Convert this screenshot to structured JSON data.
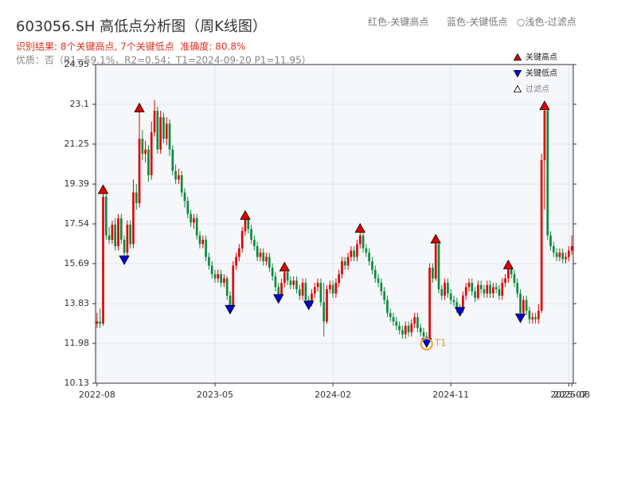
{
  "chart_data": {
    "type": "candlestick",
    "title": "603056.SH 高低点分析图（周K线图）",
    "subtitle": "识别结果: 8个关键高点, 7个关键低点  准确度: 80.8%",
    "note": "优质：否（R1=59.1%，R2=0.54；T1=2024-09-20 P1=11.95）",
    "header_legend": [
      "红色-关键高点",
      "蓝色-关键低点",
      "○浅色-过滤点"
    ],
    "up_color": "#e00000",
    "down_color": "#0a8a3a",
    "ylim": [
      10.13,
      24.95
    ],
    "yticks": [
      10.13,
      11.98,
      13.83,
      15.69,
      17.54,
      19.39,
      21.25,
      23.1,
      24.95
    ],
    "grid": true,
    "legend": "upper right",
    "categories": [
      "2022-08",
      null,
      null,
      null,
      null,
      null,
      null,
      null,
      null,
      null,
      null,
      null,
      null,
      null,
      null,
      null,
      null,
      null,
      null,
      null,
      null,
      null,
      null,
      null,
      null,
      null,
      null,
      null,
      null,
      null,
      null,
      null,
      null,
      null,
      null,
      null,
      null,
      null,
      null,
      "2023-05",
      null,
      null,
      null,
      null,
      null,
      null,
      null,
      null,
      null,
      null,
      null,
      null,
      null,
      null,
      null,
      null,
      null,
      null,
      null,
      null,
      null,
      null,
      null,
      null,
      null,
      null,
      null,
      null,
      null,
      null,
      null,
      null,
      null,
      null,
      null,
      null,
      null,
      null,
      "2024-02",
      null,
      null,
      null,
      null,
      null,
      null,
      null,
      null,
      null,
      null,
      null,
      null,
      null,
      null,
      null,
      null,
      null,
      null,
      null,
      null,
      null,
      null,
      null,
      null,
      null,
      null,
      null,
      null,
      null,
      null,
      null,
      null,
      null,
      null,
      null,
      null,
      null,
      null,
      "2024-11",
      null,
      null,
      null,
      null,
      null,
      null,
      null,
      null,
      null,
      null,
      null,
      null,
      null,
      null,
      null,
      null,
      null,
      null,
      null,
      null,
      null,
      null,
      null,
      null,
      null,
      null,
      null,
      null,
      null,
      null,
      null,
      null,
      null,
      null,
      null,
      null,
      null,
      null,
      "2025-07",
      "2025-08"
    ],
    "open": [
      12.9,
      13.0,
      12.9,
      18.8,
      17.0,
      16.8,
      17.5,
      16.5,
      17.8,
      16.8,
      16.2,
      17.5,
      16.6,
      19.0,
      18.5,
      21.5,
      20.8,
      21.0,
      19.8,
      21.8,
      22.8,
      21.0,
      22.5,
      21.5,
      22.2,
      21.0,
      20.0,
      19.6,
      19.8,
      19.0,
      18.6,
      18.0,
      17.6,
      17.8,
      17.0,
      16.6,
      16.8,
      16.0,
      15.6,
      15.2,
      15.0,
      15.2,
      14.8,
      15.0,
      14.2,
      13.7,
      15.6,
      16.0,
      16.4,
      17.2,
      17.8,
      17.3,
      16.8,
      16.5,
      16.0,
      16.2,
      15.8,
      16.0,
      15.5,
      15.1,
      14.6,
      14.2,
      14.8,
      15.3,
      14.9,
      14.7,
      14.9,
      14.5,
      14.2,
      14.8,
      14.0,
      13.8,
      14.3,
      14.6,
      14.8,
      13.9,
      13.0,
      14.5,
      14.7,
      14.3,
      14.8,
      15.2,
      15.8,
      15.6,
      16.0,
      16.3,
      16.0,
      16.6,
      17.0,
      16.4,
      16.2,
      15.8,
      15.4,
      15.0,
      14.8,
      14.4,
      14.0,
      13.4,
      13.2,
      13.0,
      12.8,
      12.6,
      12.4,
      12.8,
      12.5,
      12.9,
      13.2,
      12.7,
      12.5,
      12.3,
      12.2,
      15.5,
      15.0,
      16.6,
      14.5,
      14.2,
      14.8,
      14.3,
      14.0,
      13.9,
      13.6,
      13.5,
      14.2,
      14.6,
      14.8,
      14.4,
      14.1,
      14.7,
      14.5,
      14.3,
      14.7,
      14.3,
      14.6,
      14.5,
      14.2,
      14.8,
      15.0,
      15.5,
      15.2,
      14.8,
      14.3,
      13.4,
      14.0,
      13.5,
      13.1,
      13.2,
      13.1,
      13.5,
      20.5,
      22.8,
      17.0,
      16.5,
      16.2,
      16.0,
      16.2,
      15.9,
      16.0,
      16.3
    ],
    "close": [
      13.0,
      12.9,
      18.8,
      17.0,
      16.8,
      17.5,
      16.5,
      17.8,
      16.8,
      16.2,
      17.5,
      16.6,
      19.0,
      18.5,
      21.5,
      20.8,
      21.0,
      19.8,
      21.8,
      22.8,
      21.0,
      22.5,
      21.5,
      22.2,
      21.0,
      20.0,
      19.6,
      19.8,
      19.0,
      18.6,
      18.0,
      17.6,
      17.8,
      17.0,
      16.6,
      16.8,
      16.0,
      15.6,
      15.2,
      15.0,
      15.2,
      14.8,
      15.0,
      14.2,
      13.7,
      15.6,
      16.0,
      16.4,
      17.2,
      17.8,
      17.3,
      16.8,
      16.5,
      16.0,
      16.2,
      15.8,
      16.0,
      15.5,
      15.1,
      14.6,
      14.2,
      14.8,
      15.3,
      14.9,
      14.7,
      14.9,
      14.5,
      14.2,
      14.8,
      14.0,
      13.8,
      14.3,
      14.6,
      14.8,
      13.9,
      13.0,
      14.5,
      14.7,
      14.3,
      14.8,
      15.2,
      15.8,
      15.6,
      16.0,
      16.3,
      16.0,
      16.6,
      17.0,
      16.4,
      16.2,
      15.8,
      15.4,
      15.0,
      14.8,
      14.4,
      14.0,
      13.4,
      13.2,
      13.0,
      12.8,
      12.6,
      12.4,
      12.8,
      12.5,
      12.9,
      13.2,
      12.7,
      12.5,
      12.3,
      12.2,
      15.5,
      15.0,
      16.6,
      14.5,
      14.2,
      14.8,
      14.3,
      14.0,
      13.9,
      13.6,
      13.5,
      14.2,
      14.6,
      14.8,
      14.4,
      14.1,
      14.7,
      14.5,
      14.3,
      14.7,
      14.3,
      14.6,
      14.5,
      14.2,
      14.8,
      15.0,
      15.5,
      15.2,
      14.8,
      14.3,
      13.4,
      14.0,
      13.5,
      13.1,
      13.2,
      13.1,
      13.5,
      20.5,
      22.8,
      17.0,
      16.5,
      16.2,
      16.0,
      16.2,
      15.9,
      16.0,
      16.3,
      16.5
    ],
    "high": [
      13.4,
      13.6,
      19.2,
      19.0,
      17.4,
      17.7,
      17.8,
      18.0,
      18.0,
      17.0,
      17.7,
      17.7,
      19.6,
      19.4,
      23.0,
      21.9,
      21.4,
      21.2,
      22.3,
      23.3,
      23.0,
      22.8,
      22.7,
      22.5,
      22.4,
      21.2,
      20.3,
      20.1,
      20.0,
      19.2,
      18.8,
      18.2,
      18.0,
      18.0,
      17.2,
      17.0,
      17.0,
      16.2,
      15.8,
      15.4,
      15.4,
      15.4,
      15.2,
      15.1,
      14.4,
      15.8,
      16.2,
      16.6,
      17.4,
      18.0,
      17.9,
      17.5,
      17.0,
      16.7,
      16.4,
      16.4,
      16.2,
      16.2,
      15.7,
      15.3,
      14.8,
      15.0,
      15.6,
      15.4,
      15.1,
      15.1,
      15.1,
      14.7,
      15.0,
      15.0,
      14.2,
      14.5,
      14.8,
      15.0,
      15.0,
      14.8,
      14.7,
      14.9,
      14.9,
      15.0,
      15.4,
      16.0,
      16.0,
      16.2,
      16.5,
      16.5,
      16.8,
      17.4,
      17.2,
      16.6,
      16.4,
      16.0,
      15.6,
      15.2,
      15.0,
      14.6,
      14.2,
      13.6,
      13.4,
      13.2,
      13.0,
      12.8,
      13.0,
      13.0,
      13.1,
      13.4,
      13.4,
      12.9,
      12.7,
      12.5,
      15.7,
      15.7,
      16.9,
      16.7,
      14.7,
      15.0,
      15.0,
      14.5,
      14.2,
      14.1,
      13.8,
      14.4,
      14.8,
      15.0,
      15.0,
      14.6,
      14.9,
      14.9,
      14.7,
      14.9,
      14.9,
      14.8,
      14.8,
      14.7,
      15.0,
      15.2,
      15.7,
      15.6,
      15.4,
      15.0,
      14.5,
      14.2,
      14.2,
      13.7,
      13.4,
      13.4,
      13.8,
      20.8,
      23.1,
      23.0,
      17.2,
      16.7,
      16.4,
      16.4,
      16.4,
      16.2,
      16.5,
      17.0
    ],
    "low": [
      12.7,
      12.7,
      12.8,
      16.8,
      16.6,
      16.6,
      16.3,
      16.3,
      16.6,
      15.8,
      16.0,
      16.4,
      16.4,
      18.2,
      18.3,
      20.5,
      20.4,
      19.5,
      19.6,
      21.6,
      20.8,
      20.8,
      21.3,
      21.2,
      20.7,
      19.8,
      19.4,
      19.4,
      18.8,
      18.3,
      17.8,
      17.4,
      17.3,
      16.8,
      16.4,
      16.4,
      15.8,
      15.4,
      15.0,
      14.8,
      14.8,
      14.6,
      14.6,
      14.0,
      13.5,
      13.6,
      15.4,
      15.8,
      16.2,
      17.0,
      17.1,
      16.6,
      16.3,
      15.8,
      15.8,
      15.6,
      15.6,
      15.3,
      14.9,
      14.4,
      14.0,
      14.1,
      14.6,
      14.7,
      14.5,
      14.5,
      14.3,
      14.0,
      14.0,
      13.8,
      13.7,
      13.7,
      14.1,
      14.4,
      13.7,
      12.3,
      12.9,
      14.3,
      14.1,
      14.1,
      14.6,
      15.0,
      15.4,
      15.4,
      15.8,
      15.8,
      15.8,
      16.4,
      16.2,
      16.0,
      15.6,
      15.2,
      14.8,
      14.6,
      14.2,
      13.8,
      13.2,
      13.0,
      12.8,
      12.6,
      12.4,
      12.2,
      12.2,
      12.3,
      12.3,
      12.7,
      12.5,
      12.3,
      12.1,
      11.95,
      12.1,
      14.8,
      14.9,
      14.3,
      14.0,
      14.0,
      14.1,
      13.8,
      13.7,
      13.4,
      13.4,
      13.4,
      14.0,
      14.4,
      14.2,
      13.9,
      14.0,
      14.3,
      14.1,
      14.1,
      14.1,
      14.1,
      14.3,
      14.0,
      14.0,
      14.6,
      14.8,
      15.0,
      14.6,
      14.1,
      13.1,
      13.2,
      13.3,
      12.9,
      12.9,
      12.9,
      12.9,
      13.4,
      18.2,
      16.8,
      16.3,
      16.0,
      15.8,
      15.8,
      15.7,
      15.7,
      15.8,
      16.1
    ],
    "markers": [
      {
        "name": "关键高点",
        "color": "#e00000",
        "shape": "up",
        "values": [
          null,
          null,
          19.2,
          null,
          null,
          null,
          null,
          null,
          null,
          null,
          null,
          null,
          null,
          null,
          23.0,
          null,
          null,
          null,
          null,
          null,
          null,
          null,
          null,
          null,
          null,
          null,
          null,
          null,
          null,
          null,
          null,
          null,
          null,
          null,
          null,
          null,
          null,
          null,
          null,
          null,
          null,
          null,
          null,
          null,
          null,
          null,
          null,
          null,
          null,
          18.0,
          null,
          null,
          null,
          null,
          null,
          null,
          null,
          null,
          null,
          null,
          null,
          null,
          15.6,
          null,
          null,
          null,
          null,
          null,
          null,
          null,
          null,
          null,
          null,
          null,
          null,
          null,
          null,
          null,
          null,
          null,
          null,
          null,
          null,
          null,
          null,
          null,
          null,
          17.4,
          null,
          null,
          null,
          null,
          null,
          null,
          null,
          null,
          null,
          null,
          null,
          null,
          null,
          null,
          null,
          null,
          null,
          null,
          null,
          null,
          null,
          null,
          null,
          null,
          16.9,
          null,
          null,
          null,
          null,
          null,
          null,
          null,
          null,
          null,
          null,
          null,
          null,
          null,
          null,
          null,
          null,
          null,
          null,
          null,
          null,
          null,
          null,
          null,
          15.7,
          null,
          null,
          null,
          null,
          null,
          null,
          null,
          null,
          null,
          null,
          null,
          23.1,
          null,
          null,
          null,
          null,
          null,
          null,
          null,
          null,
          null
        ]
      },
      {
        "name": "关键低点",
        "color": "#0000dd",
        "shape": "down",
        "values": [
          null,
          null,
          null,
          null,
          null,
          null,
          null,
          null,
          null,
          15.8,
          null,
          null,
          null,
          null,
          null,
          null,
          null,
          null,
          null,
          null,
          null,
          null,
          null,
          null,
          null,
          null,
          null,
          null,
          null,
          null,
          null,
          null,
          null,
          null,
          null,
          null,
          null,
          null,
          null,
          null,
          null,
          null,
          null,
          null,
          13.5,
          null,
          null,
          null,
          null,
          null,
          null,
          null,
          null,
          null,
          null,
          null,
          null,
          null,
          null,
          null,
          14.0,
          null,
          null,
          null,
          null,
          null,
          null,
          null,
          null,
          null,
          13.7,
          null,
          null,
          null,
          null,
          null,
          null,
          null,
          null,
          null,
          null,
          null,
          null,
          null,
          null,
          null,
          null,
          null,
          null,
          null,
          null,
          null,
          null,
          null,
          null,
          null,
          null,
          null,
          null,
          null,
          null,
          null,
          null,
          null,
          null,
          null,
          null,
          null,
          null,
          11.95,
          null,
          null,
          null,
          null,
          null,
          null,
          null,
          null,
          null,
          null,
          13.4,
          null,
          null,
          null,
          null,
          null,
          null,
          null,
          null,
          null,
          null,
          null,
          null,
          null,
          null,
          null,
          null,
          null,
          null,
          null,
          13.1,
          null,
          null,
          null,
          null,
          null,
          null,
          null,
          null,
          null,
          null,
          null,
          null,
          null,
          null,
          null,
          null,
          null
        ]
      },
      {
        "name": "过滤点",
        "color": "#ffffff",
        "shape": "up"
      }
    ],
    "annotation": {
      "text": "T1",
      "color": "#f0a030",
      "values": [
        null,
        null,
        null,
        null,
        null,
        null,
        null,
        null,
        null,
        null,
        null,
        null,
        null,
        null,
        null,
        null,
        null,
        null,
        null,
        null,
        null,
        null,
        null,
        null,
        null,
        null,
        null,
        null,
        null,
        null,
        null,
        null,
        null,
        null,
        null,
        null,
        null,
        null,
        null,
        null,
        null,
        null,
        null,
        null,
        null,
        null,
        null,
        null,
        null,
        null,
        null,
        null,
        null,
        null,
        null,
        null,
        null,
        null,
        null,
        null,
        null,
        null,
        null,
        null,
        null,
        null,
        null,
        null,
        null,
        null,
        null,
        null,
        null,
        null,
        null,
        null,
        null,
        null,
        null,
        null,
        null,
        null,
        null,
        null,
        null,
        null,
        null,
        null,
        null,
        null,
        null,
        null,
        null,
        null,
        null,
        null,
        null,
        null,
        null,
        null,
        null,
        null,
        null,
        null,
        null,
        null,
        null,
        null,
        null,
        11.95,
        null,
        null,
        null,
        null,
        null,
        null,
        null,
        null,
        null,
        null,
        null,
        null,
        null,
        null,
        null,
        null,
        null,
        null,
        null,
        null,
        null,
        null,
        null,
        null,
        null,
        null,
        null,
        null,
        null,
        null,
        null,
        null,
        null,
        null,
        null,
        null,
        null,
        null,
        null,
        null,
        null,
        null,
        null,
        null,
        null,
        null,
        null,
        null
      ]
    }
  }
}
